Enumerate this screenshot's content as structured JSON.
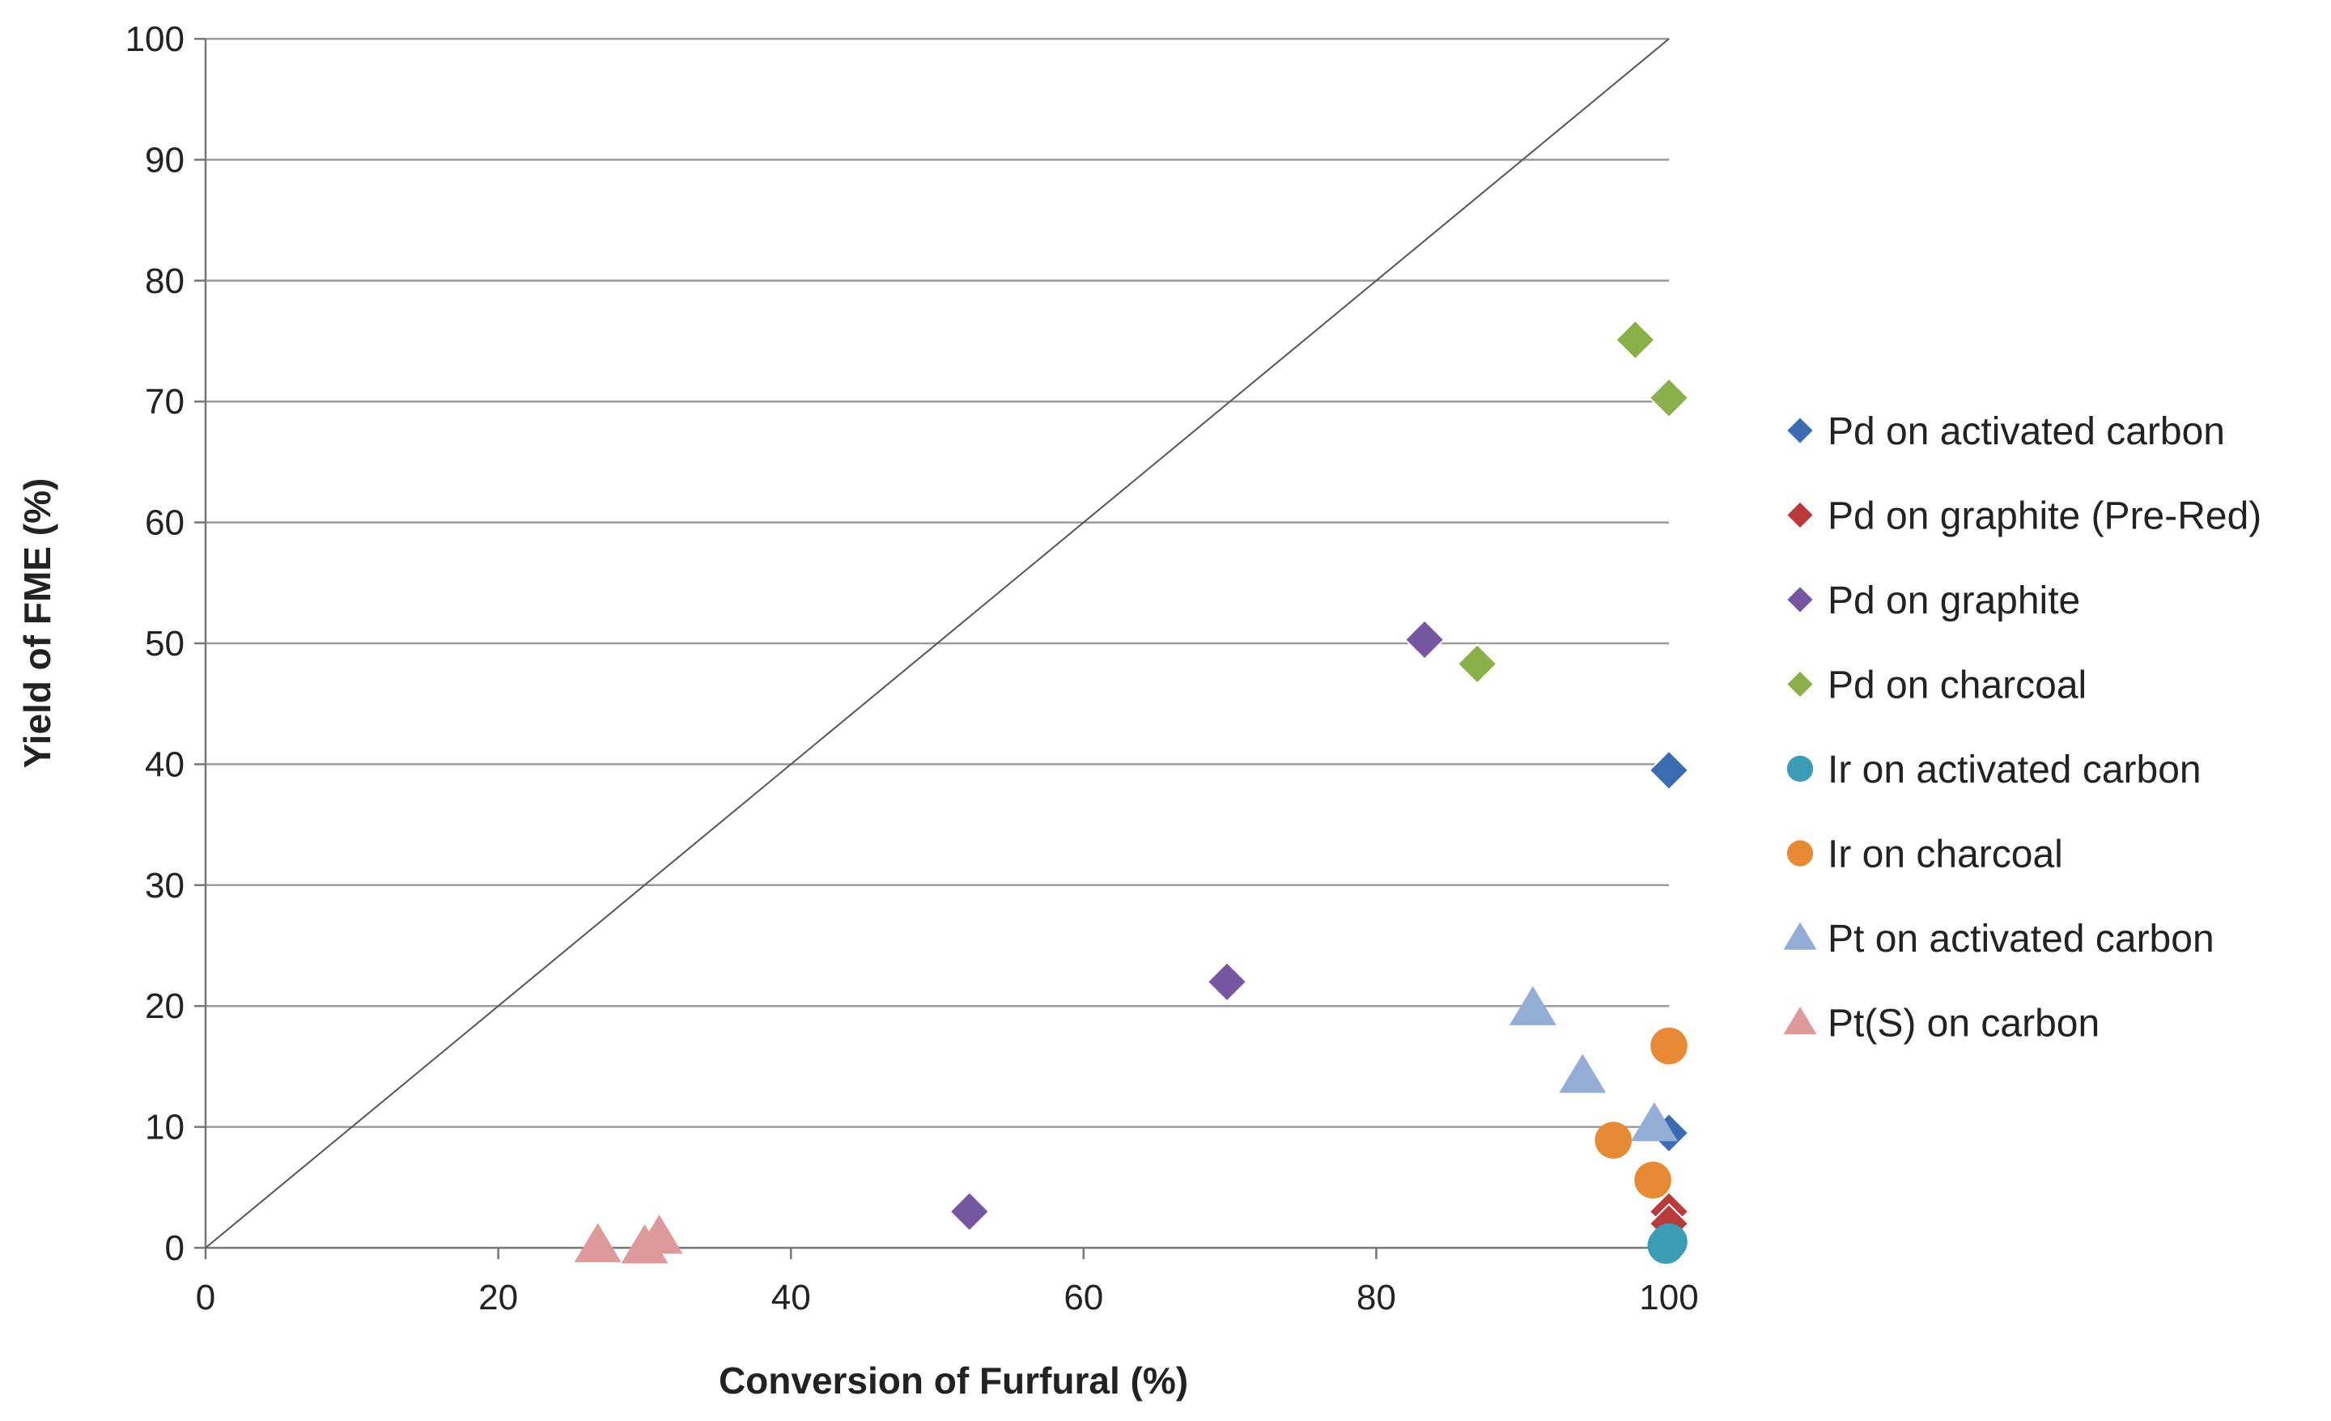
{
  "chart_data": {
    "type": "scatter",
    "xlabel": "Conversion of Furfural (%)",
    "ylabel": "Yield of FME (%)",
    "xlim": [
      0,
      100
    ],
    "ylim": [
      0,
      100
    ],
    "x_ticks": [
      0,
      20,
      40,
      60,
      80,
      100
    ],
    "y_ticks": [
      0,
      10,
      20,
      30,
      40,
      50,
      60,
      70,
      80,
      90,
      100
    ],
    "grid": "horizontal",
    "legend_position": "right",
    "reference_line": {
      "name": "parity",
      "from": [
        0,
        0
      ],
      "to": [
        100,
        100
      ],
      "color": "#555555"
    },
    "series": [
      {
        "name": "Pd on activated carbon",
        "marker": "diamond",
        "color": "#3B6BB0",
        "points": [
          [
            100,
            39.5
          ],
          [
            100,
            9.5
          ]
        ]
      },
      {
        "name": "Pd on graphite (Pre-Red)",
        "marker": "diamond",
        "color": "#B83A3A",
        "points": [
          [
            100,
            3
          ],
          [
            100,
            2
          ]
        ]
      },
      {
        "name": "Pd on graphite",
        "marker": "diamond",
        "color": "#7556A0",
        "points": [
          [
            83.3,
            50.3
          ],
          [
            69.8,
            22
          ],
          [
            52.2,
            3
          ]
        ]
      },
      {
        "name": "Pd on charcoal",
        "marker": "diamond",
        "color": "#8AB04A",
        "points": [
          [
            97.7,
            75.1
          ],
          [
            100,
            70.3
          ],
          [
            86.9,
            48.3
          ]
        ]
      },
      {
        "name": "Ir on activated carbon",
        "marker": "circle",
        "color": "#3A9CB5",
        "points": [
          [
            100,
            0.5
          ],
          [
            99.8,
            0.2
          ]
        ]
      },
      {
        "name": "Ir on charcoal",
        "marker": "circle",
        "color": "#E88A33",
        "points": [
          [
            100,
            16.7
          ],
          [
            96.2,
            8.9
          ],
          [
            98.9,
            5.6
          ]
        ]
      },
      {
        "name": "Pt on activated carbon",
        "marker": "triangle",
        "color": "#94ADD6",
        "points": [
          [
            90.7,
            19.8
          ],
          [
            94.1,
            14.2
          ],
          [
            99,
            10.2
          ]
        ]
      },
      {
        "name": "Pt(S) on carbon",
        "marker": "triangle",
        "color": "#DE9A9A",
        "points": [
          [
            26.8,
            0.2
          ],
          [
            30,
            0.1
          ],
          [
            31,
            0.9
          ]
        ]
      }
    ]
  }
}
